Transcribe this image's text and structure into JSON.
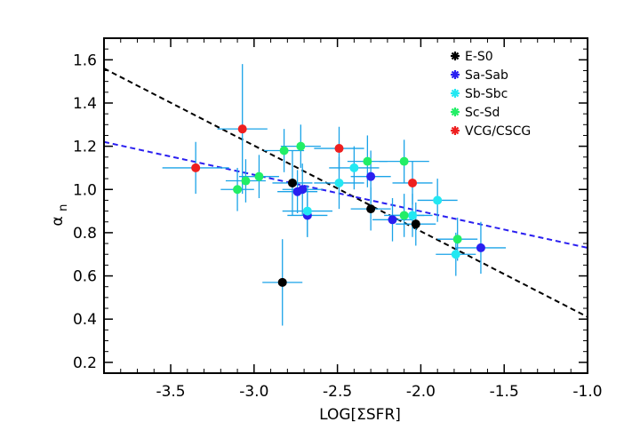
{
  "chart_data": {
    "type": "scatter",
    "title": "",
    "xlabel": "LOG[ΣSFR]",
    "ylabel_main": "α",
    "ylabel_sub": "n",
    "xlim": [
      -3.9,
      -1.0
    ],
    "ylim": [
      0.15,
      1.7
    ],
    "xticks": [
      -3.5,
      -3.0,
      -2.5,
      -2.0,
      -1.5,
      -1.0
    ],
    "xtick_labels": [
      "-3.5",
      "-3.0",
      "-2.5",
      "-2.0",
      "-1.5",
      "-1.0"
    ],
    "yticks": [
      0.2,
      0.4,
      0.6,
      0.8,
      1.0,
      1.2,
      1.4,
      1.6
    ],
    "ytick_labels": [
      "0.2",
      "0.4",
      "0.6",
      "0.8",
      "1.0",
      "1.2",
      "1.4",
      "1.6"
    ],
    "legend_position": "top-right",
    "series": [
      {
        "name": "E-S0",
        "color": "#000000",
        "points": [
          {
            "x": -2.83,
            "y": 0.57,
            "xerr": 0.12,
            "yerr": 0.2
          },
          {
            "x": -2.77,
            "y": 1.03,
            "xerr": 0.12,
            "yerr": 0.15
          },
          {
            "x": -2.3,
            "y": 0.91,
            "xerr": 0.12,
            "yerr": 0.1
          },
          {
            "x": -2.03,
            "y": 0.84,
            "xerr": 0.12,
            "yerr": 0.1
          }
        ]
      },
      {
        "name": "Sa-Sab",
        "color": "#2a1ff0",
        "points": [
          {
            "x": -2.74,
            "y": 0.99,
            "xerr": 0.12,
            "yerr": 0.1
          },
          {
            "x": -2.71,
            "y": 1.0,
            "xerr": 0.12,
            "yerr": 0.12
          },
          {
            "x": -2.68,
            "y": 0.88,
            "xerr": 0.12,
            "yerr": 0.1
          },
          {
            "x": -2.3,
            "y": 1.06,
            "xerr": 0.12,
            "yerr": 0.12
          },
          {
            "x": -2.17,
            "y": 0.86,
            "xerr": 0.12,
            "yerr": 0.1
          },
          {
            "x": -1.64,
            "y": 0.73,
            "xerr": 0.15,
            "yerr": 0.12
          }
        ]
      },
      {
        "name": "Sb-Sbc",
        "color": "#22e8f2",
        "points": [
          {
            "x": -2.68,
            "y": 0.9,
            "xerr": 0.15,
            "yerr": 0.12
          },
          {
            "x": -2.49,
            "y": 1.03,
            "xerr": 0.15,
            "yerr": 0.12
          },
          {
            "x": -2.4,
            "y": 1.1,
            "xerr": 0.15,
            "yerr": 0.1
          },
          {
            "x": -2.05,
            "y": 0.88,
            "xerr": 0.12,
            "yerr": 0.1
          },
          {
            "x": -1.9,
            "y": 0.95,
            "xerr": 0.12,
            "yerr": 0.1
          },
          {
            "x": -1.79,
            "y": 0.7,
            "xerr": 0.12,
            "yerr": 0.1
          }
        ]
      },
      {
        "name": "Sc-Sd",
        "color": "#22ee66",
        "points": [
          {
            "x": -3.1,
            "y": 1.0,
            "xerr": 0.1,
            "yerr": 0.1
          },
          {
            "x": -3.05,
            "y": 1.04,
            "xerr": 0.12,
            "yerr": 0.1
          },
          {
            "x": -2.97,
            "y": 1.06,
            "xerr": 0.12,
            "yerr": 0.1
          },
          {
            "x": -2.82,
            "y": 1.18,
            "xerr": 0.12,
            "yerr": 0.1
          },
          {
            "x": -2.72,
            "y": 1.2,
            "xerr": 0.12,
            "yerr": 0.1
          },
          {
            "x": -2.32,
            "y": 1.13,
            "xerr": 0.12,
            "yerr": 0.12
          },
          {
            "x": -2.1,
            "y": 1.13,
            "xerr": 0.15,
            "yerr": 0.1
          },
          {
            "x": -2.1,
            "y": 0.88,
            "xerr": 0.12,
            "yerr": 0.1
          },
          {
            "x": -1.78,
            "y": 0.77,
            "xerr": 0.12,
            "yerr": 0.1
          }
        ]
      },
      {
        "name": "VCG/CSCG",
        "color": "#ee1f1f",
        "points": [
          {
            "x": -3.35,
            "y": 1.1,
            "xerr": 0.2,
            "yerr": 0.12
          },
          {
            "x": -3.07,
            "y": 1.28,
            "xerr": 0.15,
            "yerr": 0.3
          },
          {
            "x": -2.49,
            "y": 1.19,
            "xerr": 0.15,
            "yerr": 0.1
          },
          {
            "x": -2.05,
            "y": 1.03,
            "xerr": 0.12,
            "yerr": 0.1
          }
        ]
      }
    ],
    "fit_lines": [
      {
        "name": "fit-black-dashed",
        "color": "#000000",
        "x": [
          -3.9,
          -1.0
        ],
        "y": [
          1.56,
          0.41
        ]
      },
      {
        "name": "fit-blue-dashed",
        "color": "#2a1ff0",
        "x": [
          -3.9,
          -1.0
        ],
        "y": [
          1.22,
          0.73
        ]
      }
    ],
    "errorbar_color": "#1aa3e8",
    "legend": [
      {
        "label": "E-S0",
        "color": "#000000"
      },
      {
        "label": "Sa-Sab",
        "color": "#2a1ff0"
      },
      {
        "label": "Sb-Sbc",
        "color": "#22e8f2"
      },
      {
        "label": "Sc-Sd",
        "color": "#22ee66"
      },
      {
        "label": "VCG/CSCG",
        "color": "#ee1f1f"
      }
    ]
  }
}
